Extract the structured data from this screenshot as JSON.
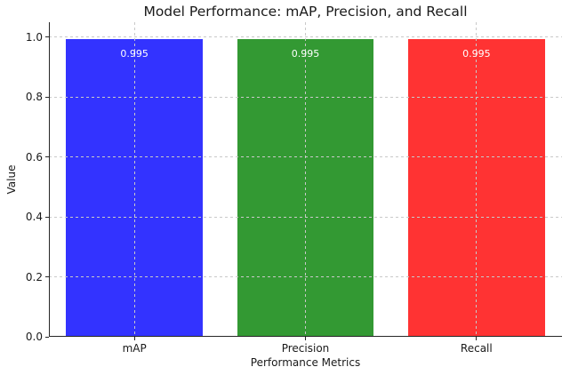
{
  "chart_data": {
    "type": "bar",
    "title": "Model Performance: mAP, Precision, and Recall",
    "xlabel": "Performance Metrics",
    "ylabel": "Value",
    "categories": [
      "mAP",
      "Precision",
      "Recall"
    ],
    "values": [
      0.995,
      0.995,
      0.995
    ],
    "bar_labels": [
      "0.995",
      "0.995",
      "0.995"
    ],
    "bar_colors": [
      "#3333ff",
      "#339933",
      "#ff3333"
    ],
    "bar_label_color": "#ffffff",
    "ylim": [
      0,
      1.05
    ],
    "yticks": [
      "0.0",
      "0.2",
      "0.4",
      "0.6",
      "0.8",
      "1.0"
    ],
    "grid": {
      "style": "dashed",
      "color": "#c9c9c9",
      "horizontal": true,
      "vertical": true
    },
    "legend": "none",
    "bar_width_fraction": 0.8
  }
}
